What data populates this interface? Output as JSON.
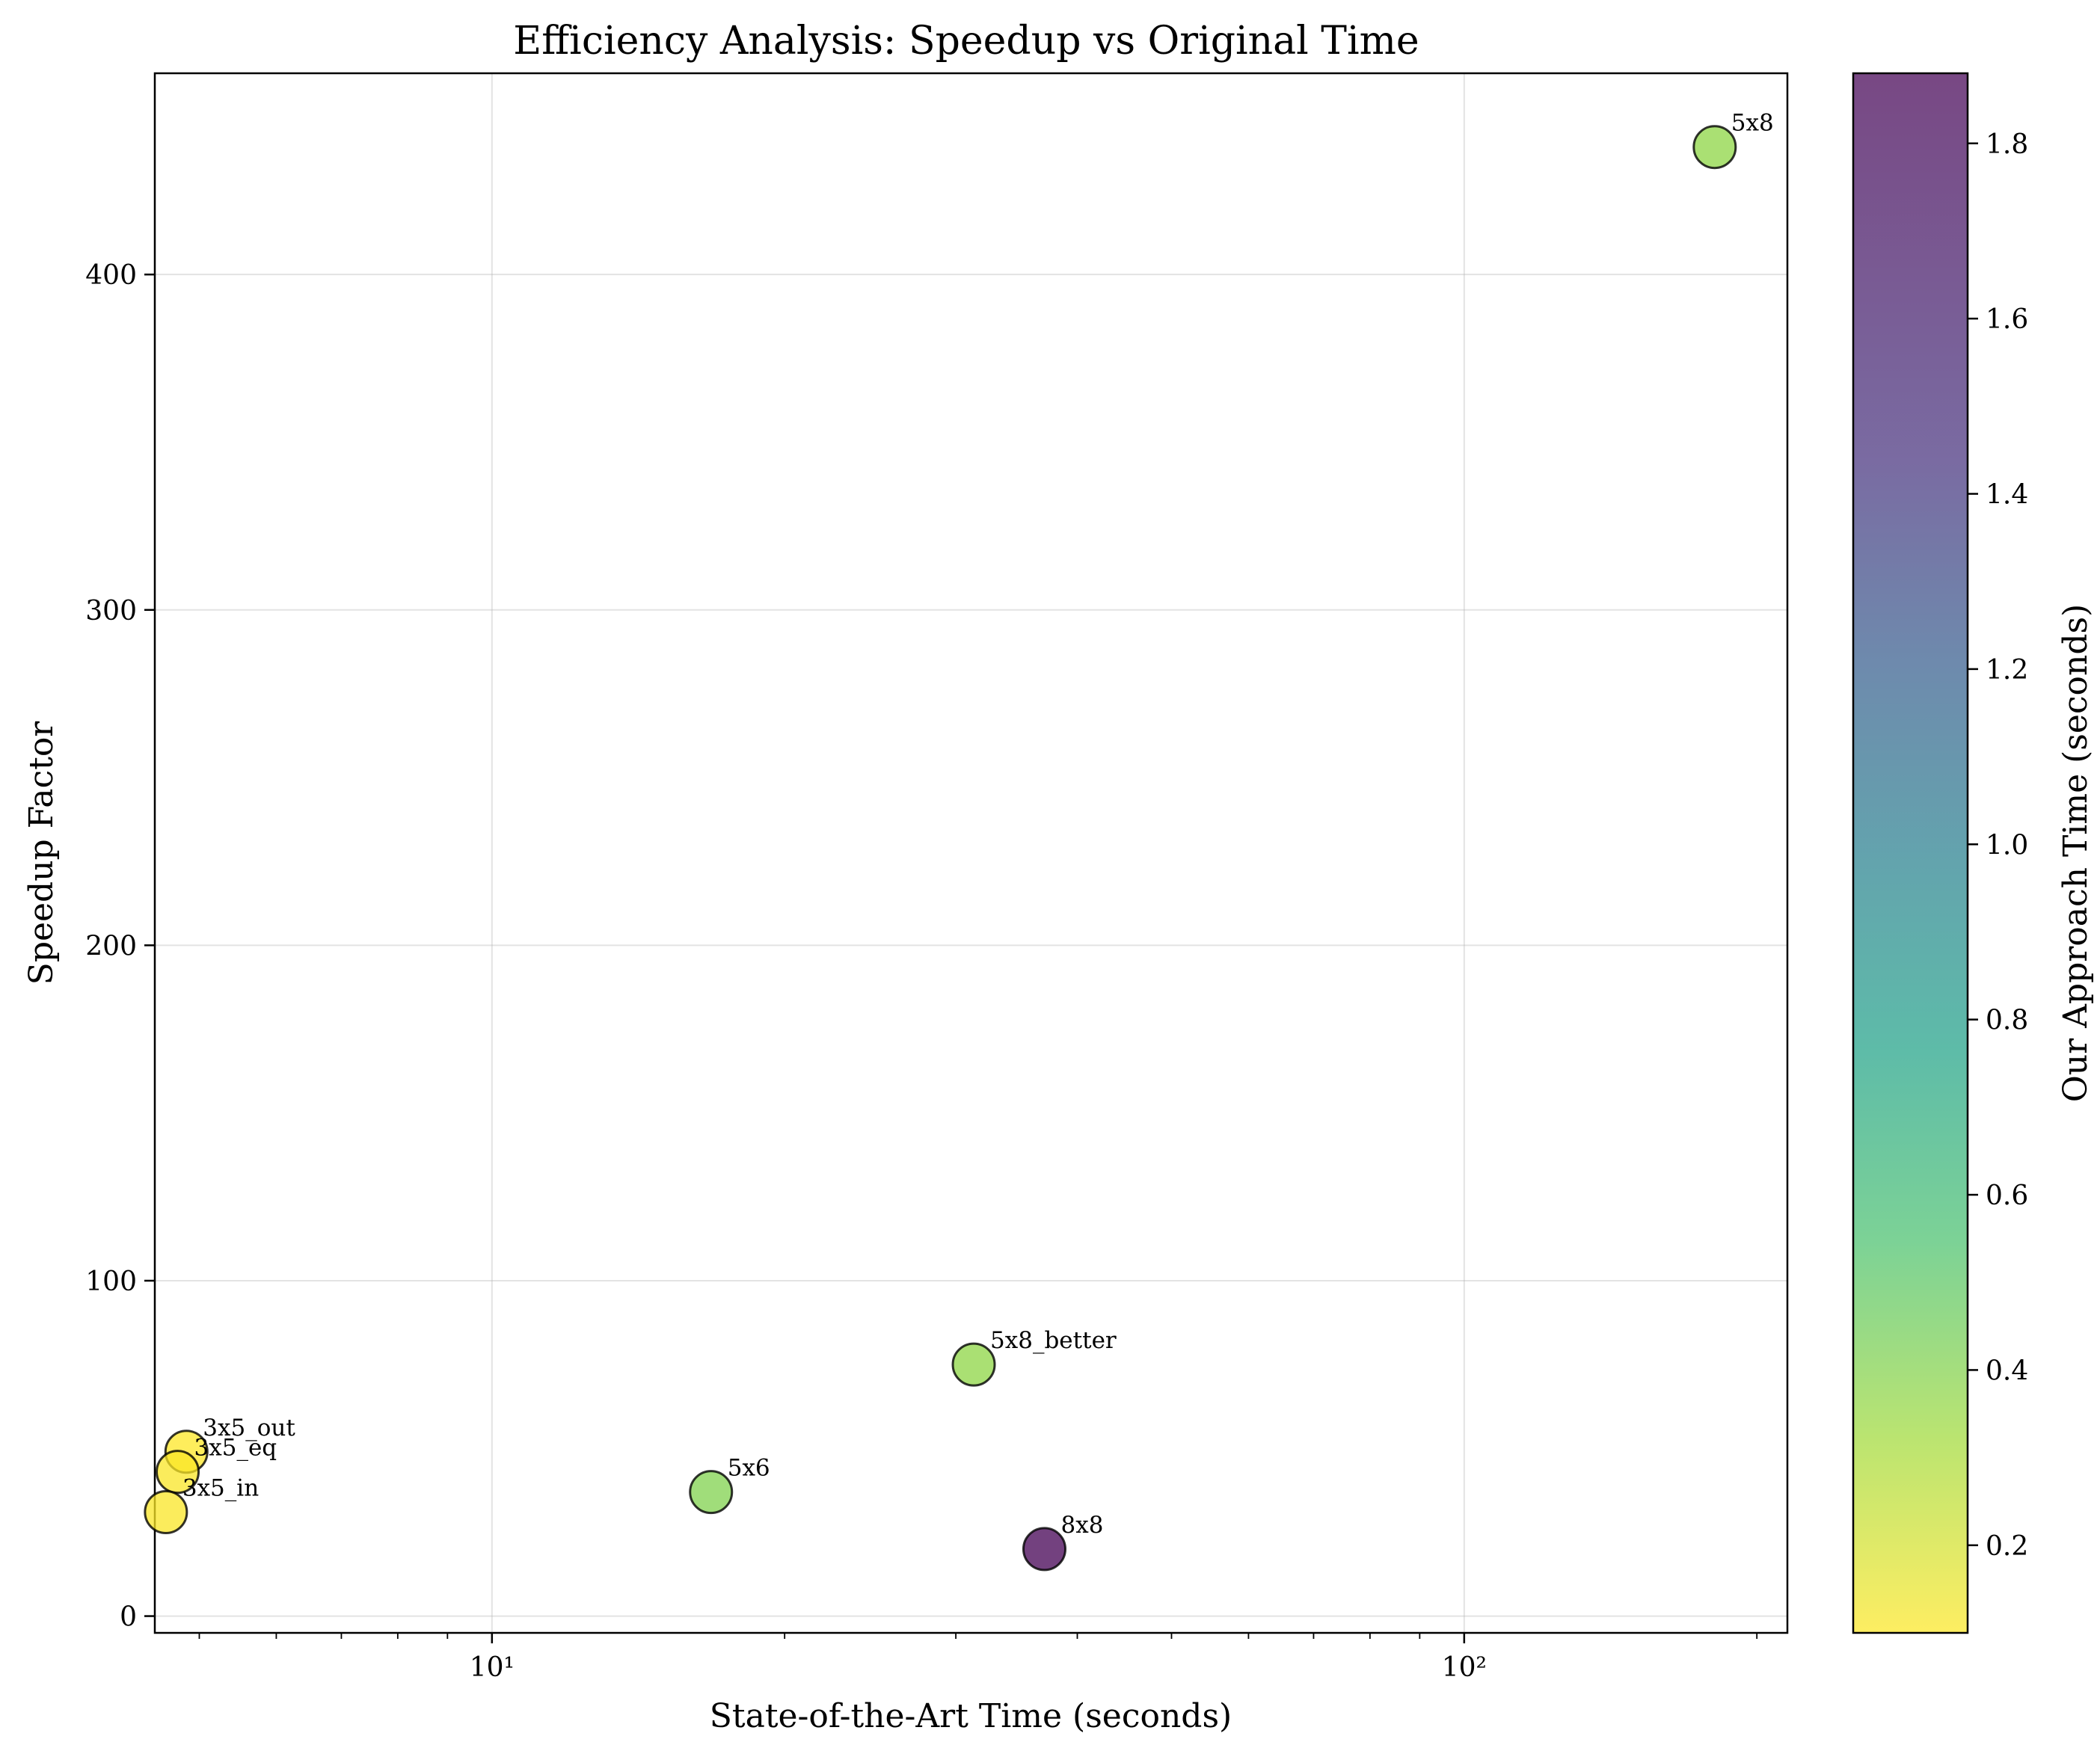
{
  "chart_data": {
    "type": "scatter",
    "title": "Efficiency Analysis: Speedup vs Original Time",
    "xlabel": "State-of-the-Art Time (seconds)",
    "ylabel": "Speedup Factor",
    "x_scale": "log",
    "xlim": [
      4.5,
      215
    ],
    "ylim": [
      -5,
      460
    ],
    "x_ticks": [
      {
        "value": 10,
        "label": "10¹"
      },
      {
        "value": 100,
        "label": "10²"
      }
    ],
    "y_ticks": [
      0,
      100,
      200,
      300,
      400
    ],
    "grid": true,
    "colorbar": {
      "label": "Our Approach Time (seconds)",
      "colormap": "viridis_r",
      "range": [
        0.1,
        1.88
      ],
      "ticks": [
        0.2,
        0.4,
        0.6,
        0.8,
        1.0,
        1.2,
        1.4,
        1.6,
        1.8
      ]
    },
    "points": [
      {
        "label": "5x8",
        "x": 181,
        "y": 438,
        "c": 0.41
      },
      {
        "label": "5x8_better",
        "x": 31.3,
        "y": 75,
        "c": 0.41
      },
      {
        "label": "5x6",
        "x": 16.8,
        "y": 37,
        "c": 0.45
      },
      {
        "label": "8x8",
        "x": 37,
        "y": 20,
        "c": 1.88
      },
      {
        "label": "3x5_out",
        "x": 4.85,
        "y": 49,
        "c": 0.1
      },
      {
        "label": "3x5_eq",
        "x": 4.75,
        "y": 43,
        "c": 0.11
      },
      {
        "label": "3x5_in",
        "x": 4.62,
        "y": 31,
        "c": 0.11
      }
    ]
  }
}
